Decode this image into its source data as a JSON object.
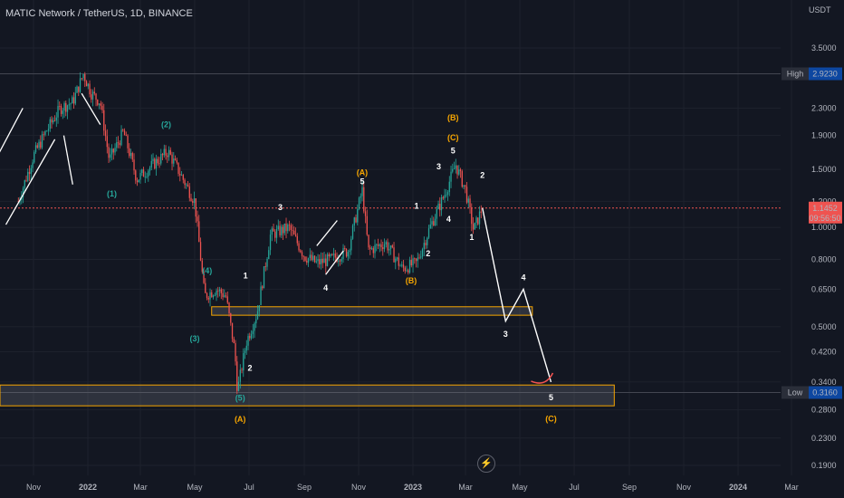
{
  "header": {
    "title": "MATIC Network / TetherUS, 1D, BINANCE"
  },
  "colors": {
    "background": "#131722",
    "up": "#26a69a",
    "down": "#ef5350",
    "zone": "#f7a600",
    "projection": "#ffffff",
    "orange_label": "#f7a600",
    "green_label": "#26a69a"
  },
  "chart_data": {
    "type": "candlestick",
    "title": "MATIC Network / TetherUS, 1D, BINANCE",
    "y_axis": {
      "unit_label": "USDT",
      "scale": "log",
      "ticks": [
        3.5,
        2.3,
        1.9,
        1.5,
        1.2,
        1.0,
        0.8,
        0.65,
        0.5,
        0.42,
        0.34,
        0.28,
        0.23,
        0.19
      ],
      "tick_labels": [
        "3.5000",
        "2.3000",
        "1.9000",
        "1.5000",
        "1.2000",
        "1.0000",
        "0.8000",
        "0.6500",
        "0.5000",
        "0.4200",
        "0.3400",
        "0.2800",
        "0.2300",
        "0.1900"
      ]
    },
    "x_axis": {
      "ticks": [
        "Nov",
        "2022",
        "Mar",
        "May",
        "Jul",
        "Sep",
        "Nov",
        "2023",
        "Mar",
        "May",
        "Jul",
        "Sep",
        "Nov",
        "2024",
        "Mar"
      ]
    },
    "markers": {
      "high": {
        "label": "High",
        "value": "2.9230"
      },
      "low": {
        "label": "Low",
        "value": "0.3160"
      },
      "last": {
        "value": "1.1452",
        "countdown": "09:56:50"
      }
    },
    "price_path": [
      [
        "2021-10-15",
        1.2
      ],
      [
        "2021-11-01",
        1.65
      ],
      [
        "2021-11-15",
        1.95
      ],
      [
        "2021-12-01",
        2.3
      ],
      [
        "2021-12-15",
        2.4
      ],
      [
        "2021-12-27",
        2.92
      ],
      [
        "2022-01-05",
        2.55
      ],
      [
        "2022-01-15",
        2.4
      ],
      [
        "2022-01-25",
        1.6
      ],
      [
        "2022-02-10",
        1.95
      ],
      [
        "2022-02-25",
        1.4
      ],
      [
        "2022-03-15",
        1.55
      ],
      [
        "2022-04-01",
        1.7
      ],
      [
        "2022-04-15",
        1.45
      ],
      [
        "2022-05-01",
        1.2
      ],
      [
        "2022-05-12",
        0.62
      ],
      [
        "2022-05-25",
        0.65
      ],
      [
        "2022-06-05",
        0.62
      ],
      [
        "2022-06-15",
        0.42
      ],
      [
        "2022-06-18",
        0.32
      ],
      [
        "2022-06-28",
        0.45
      ],
      [
        "2022-07-10",
        0.55
      ],
      [
        "2022-07-25",
        0.95
      ],
      [
        "2022-08-15",
        1.0
      ],
      [
        "2022-09-01",
        0.82
      ],
      [
        "2022-09-15",
        0.78
      ],
      [
        "2022-10-01",
        0.8
      ],
      [
        "2022-10-20",
        0.85
      ],
      [
        "2022-11-05",
        1.3
      ],
      [
        "2022-11-12",
        0.85
      ],
      [
        "2022-12-01",
        0.9
      ],
      [
        "2022-12-20",
        0.75
      ],
      [
        "2023-01-05",
        0.78
      ],
      [
        "2023-01-20",
        1.0
      ],
      [
        "2023-02-05",
        1.25
      ],
      [
        "2023-02-18",
        1.55
      ],
      [
        "2023-03-01",
        1.3
      ],
      [
        "2023-03-10",
        0.98
      ],
      [
        "2023-03-20",
        1.15
      ]
    ],
    "projection": [
      [
        "2023-03-20",
        1.1452
      ],
      [
        "2023-04-15",
        0.52
      ],
      [
        "2023-05-05",
        0.65
      ],
      [
        "2023-06-05",
        0.34
      ]
    ],
    "wedges": [
      [
        [
          "2021-08-10",
          1.0
        ],
        [
          "2021-10-20",
          2.3
        ]
      ],
      [
        [
          "2021-10-01",
          1.02
        ],
        [
          "2021-11-25",
          1.85
        ]
      ],
      [
        [
          "2021-12-05",
          1.9
        ],
        [
          "2021-12-15",
          1.35
        ]
      ],
      [
        [
          "2021-12-25",
          2.55
        ],
        [
          "2022-01-15",
          2.05
        ]
      ],
      [
        [
          "2022-09-15",
          0.88
        ],
        [
          "2022-10-08",
          1.05
        ]
      ],
      [
        [
          "2022-09-25",
          0.72
        ],
        [
          "2022-10-15",
          0.85
        ]
      ]
    ],
    "zones": [
      {
        "from": "2022-05-20",
        "to": "2023-05-15",
        "top": 0.575,
        "bottom": 0.542
      },
      {
        "from": "2021-08-01",
        "to": "2023-08-15",
        "top": 0.333,
        "bottom": 0.288
      }
    ],
    "wave_labels": [
      {
        "text": "(1)",
        "date": "2022-01-28",
        "price": 1.265,
        "color": "green"
      },
      {
        "text": "(2)",
        "date": "2022-03-30",
        "price": 2.05,
        "color": "green"
      },
      {
        "text": "(3)",
        "date": "2022-05-01",
        "price": 0.46,
        "color": "green"
      },
      {
        "text": "(4)",
        "date": "2022-05-15",
        "price": 0.74,
        "color": "green"
      },
      {
        "text": "(5)",
        "date": "2022-06-21",
        "price": 0.304,
        "color": "green"
      },
      {
        "text": "1",
        "date": "2022-06-27",
        "price": 0.715,
        "color": "white"
      },
      {
        "text": "2",
        "date": "2022-07-02",
        "price": 0.375,
        "color": "white"
      },
      {
        "text": "3",
        "date": "2022-08-05",
        "price": 1.15,
        "color": "white"
      },
      {
        "text": "4",
        "date": "2022-09-25",
        "price": 0.655,
        "color": "white"
      },
      {
        "text": "5",
        "date": "2022-11-05",
        "price": 1.38,
        "color": "white"
      },
      {
        "text": "(A)",
        "date": "2022-11-05",
        "price": 1.47,
        "color": "orange"
      },
      {
        "text": "(A)",
        "date": "2022-06-21",
        "price": 0.262,
        "color": "orange"
      },
      {
        "text": "(B)",
        "date": "2022-12-30",
        "price": 0.69,
        "color": "orange"
      },
      {
        "text": "1",
        "date": "2023-01-05",
        "price": 1.16,
        "color": "white"
      },
      {
        "text": "2",
        "date": "2023-01-18",
        "price": 0.835,
        "color": "white"
      },
      {
        "text": "3",
        "date": "2023-01-30",
        "price": 1.53,
        "color": "white"
      },
      {
        "text": "4",
        "date": "2023-02-10",
        "price": 1.06,
        "color": "white"
      },
      {
        "text": "5",
        "date": "2023-02-15",
        "price": 1.71,
        "color": "white"
      },
      {
        "text": "(C)",
        "date": "2023-02-15",
        "price": 1.87,
        "color": "orange"
      },
      {
        "text": "(B)",
        "date": "2023-02-15",
        "price": 2.15,
        "color": "orange"
      },
      {
        "text": "1",
        "date": "2023-03-08",
        "price": 0.935,
        "color": "white"
      },
      {
        "text": "2",
        "date": "2023-03-20",
        "price": 1.44,
        "color": "white"
      },
      {
        "text": "3",
        "date": "2023-04-15",
        "price": 0.475,
        "color": "white"
      },
      {
        "text": "4",
        "date": "2023-05-05",
        "price": 0.705,
        "color": "white"
      },
      {
        "text": "5",
        "date": "2023-06-05",
        "price": 0.305,
        "color": "white"
      },
      {
        "text": "(C)",
        "date": "2023-06-05",
        "price": 0.263,
        "color": "orange"
      }
    ]
  }
}
